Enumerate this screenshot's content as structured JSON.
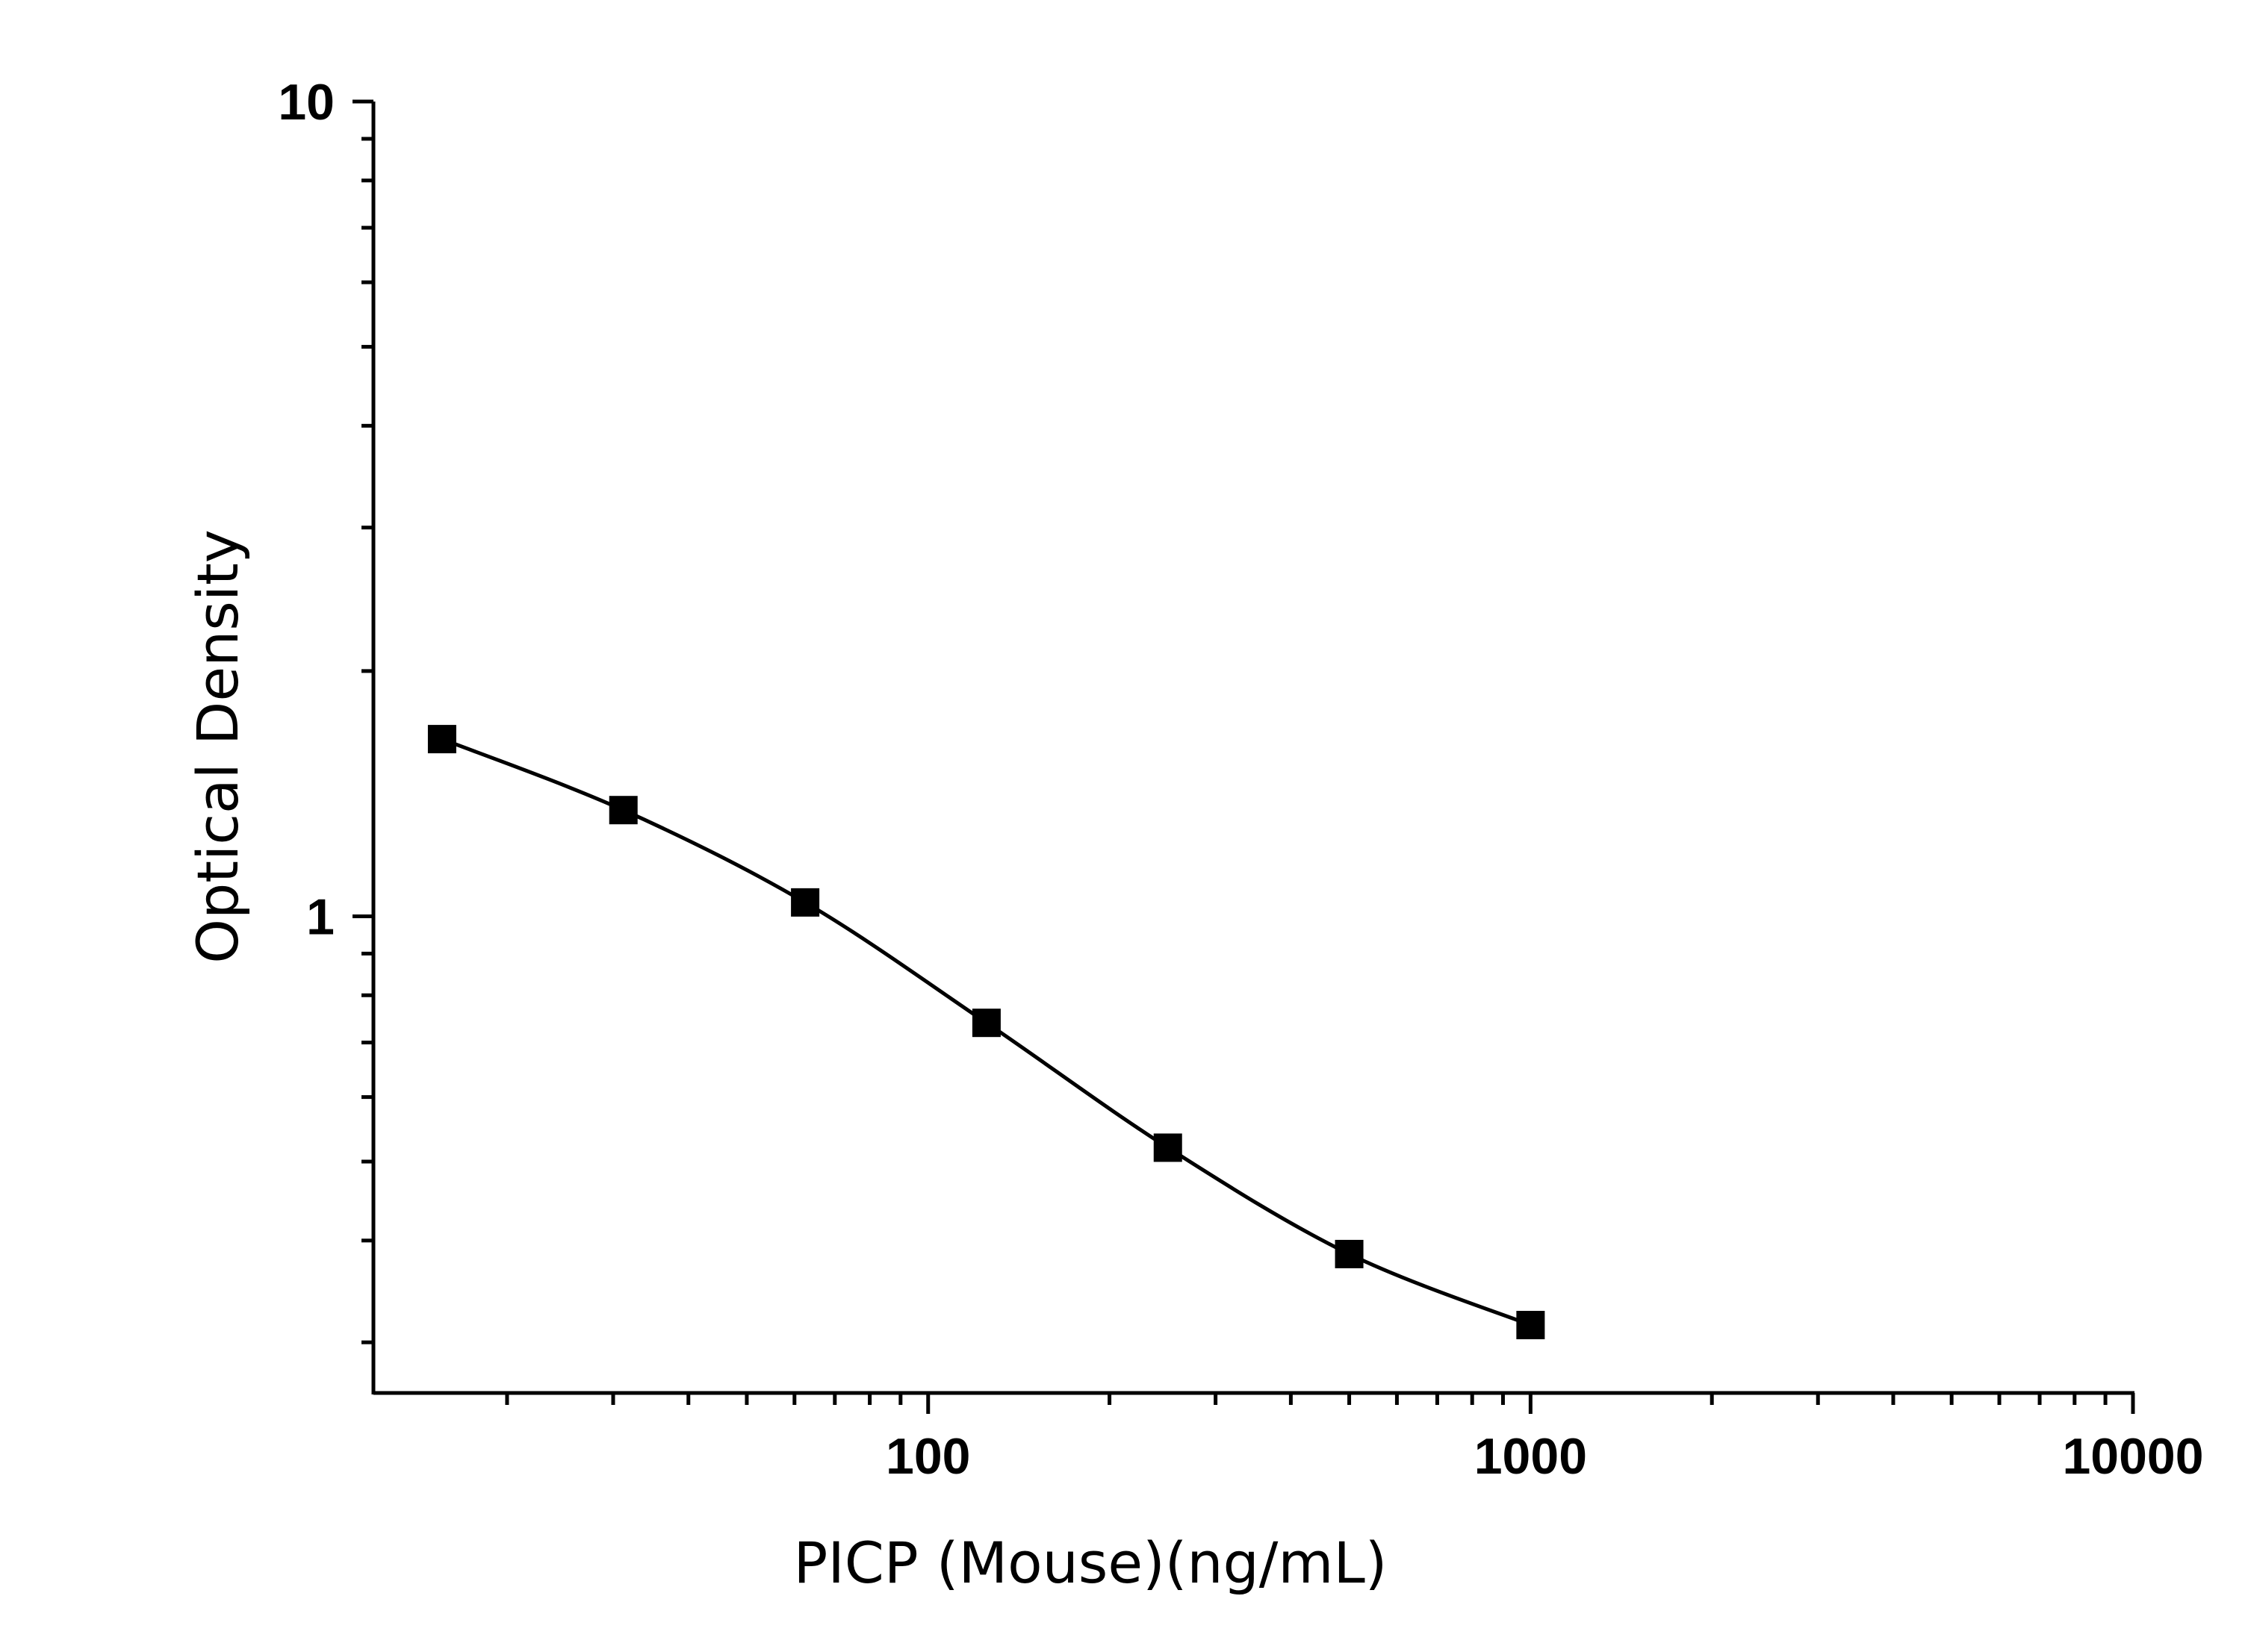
{
  "chart_data": {
    "type": "scatter",
    "title": "",
    "xlabel": "PICP (Mouse)(ng/mL)",
    "ylabel": "Optical Density",
    "x_scale": "log",
    "y_scale": "log",
    "xlim": [
      12,
      10000
    ],
    "ylim": [
      0.26,
      10
    ],
    "x_ticks": [
      {
        "value": 100,
        "label": "100"
      },
      {
        "value": 1000,
        "label": "1000"
      },
      {
        "value": 10000,
        "label": "10000"
      }
    ],
    "y_ticks": [
      {
        "value": 1,
        "label": "1"
      },
      {
        "value": 10,
        "label": "10"
      }
    ],
    "grid": false,
    "legend": "none",
    "series": [
      {
        "marker": "square",
        "line": "smooth-fit",
        "color": "#000000",
        "x": [
          15.6,
          31.2,
          62.5,
          125,
          250,
          500,
          1000
        ],
        "y": [
          1.65,
          1.35,
          1.04,
          0.74,
          0.52,
          0.385,
          0.315
        ]
      }
    ]
  }
}
